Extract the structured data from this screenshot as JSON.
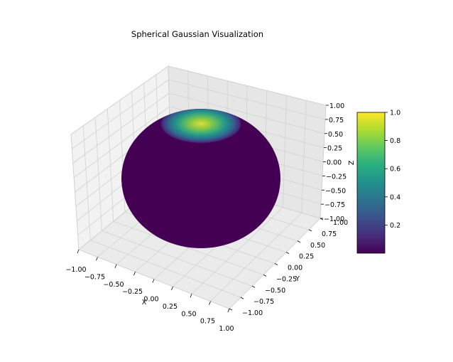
{
  "chart_data": {
    "type": "surface3d",
    "title": "Spherical Gaussian Visualization",
    "xlabel": "X",
    "ylabel": "Y",
    "zlabel": "Z",
    "xlim": [
      -1.0,
      1.0
    ],
    "ylim": [
      -1.0,
      1.0
    ],
    "zlim": [
      -1.0,
      1.0
    ],
    "x_ticks": [
      "−1.00",
      "−0.75",
      "−0.50",
      "−0.25",
      "0.00",
      "0.25",
      "0.50",
      "0.75",
      "1.00"
    ],
    "y_ticks": [
      "−1.00",
      "−0.75",
      "−0.50",
      "−0.25",
      "0.00",
      "0.25",
      "0.50",
      "0.75",
      "1.00"
    ],
    "z_ticks": [
      "−1.00",
      "−0.75",
      "−0.50",
      "−0.25",
      "0.00",
      "0.25",
      "0.50",
      "0.75",
      "1.00"
    ],
    "surface": "unit sphere",
    "colormap": "viridis",
    "color_value": "spherical gaussian exp(sharpness·(z−1)), peak 1.0 at the north pole",
    "sharpness": 5,
    "colorbar": {
      "min": 0.0,
      "max": 1.0,
      "ticks": [
        "0.2",
        "0.4",
        "0.6",
        "0.8",
        "1.0"
      ]
    },
    "grid": true
  }
}
